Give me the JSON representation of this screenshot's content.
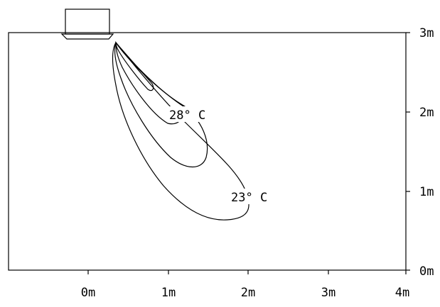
{
  "diagram": {
    "x_axis": {
      "tick_labels": [
        "0m",
        "1m",
        "2m",
        "3m",
        "4m"
      ]
    },
    "y_axis": {
      "tick_labels": [
        "0m",
        "1m",
        "2m",
        "3m"
      ]
    },
    "isotherm_labels": {
      "inner": "28° C",
      "outer": "23° C"
    },
    "colors": {
      "line": "#000000",
      "background": "#ffffff"
    }
  }
}
